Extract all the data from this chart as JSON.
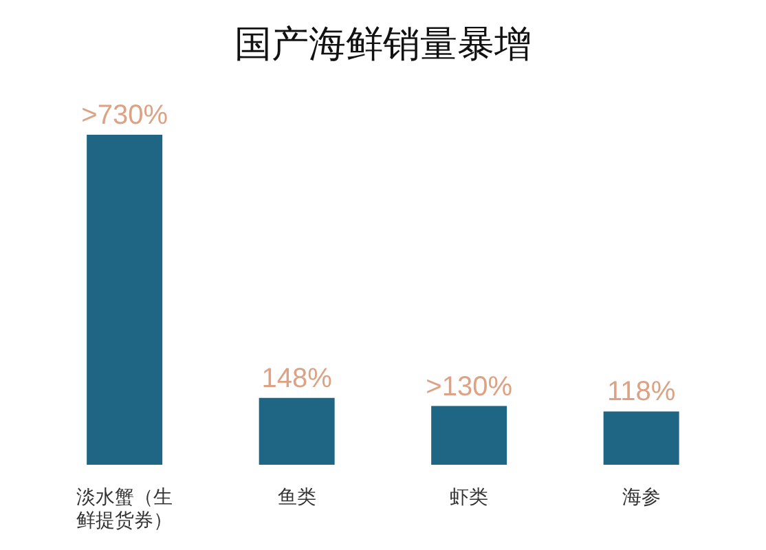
{
  "chart_data": {
    "type": "bar",
    "title": "国产海鲜销量暴增",
    "categories": [
      "淡水蟹（生鲜提货券）",
      "鱼类",
      "虾类",
      "海参"
    ],
    "values": [
      730,
      148,
      130,
      118
    ],
    "value_labels": [
      ">730%",
      "148%",
      ">130%",
      "118%"
    ],
    "color": "#1e6684",
    "tick_labels": "x"
  }
}
